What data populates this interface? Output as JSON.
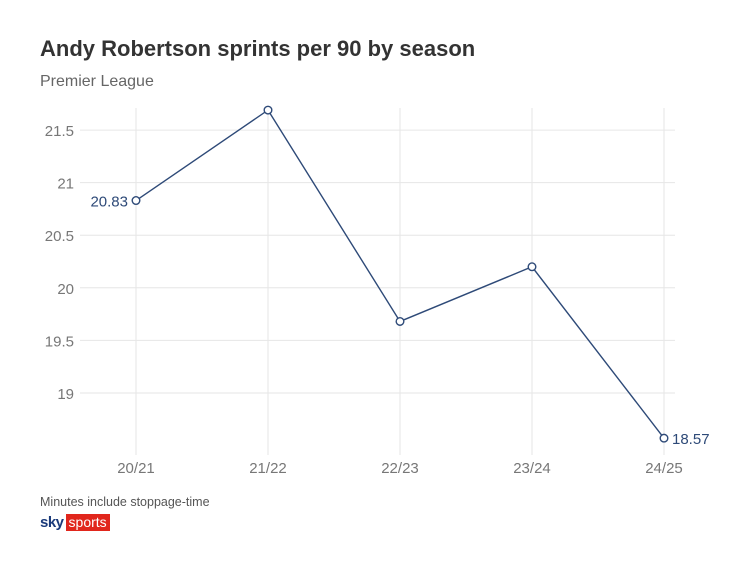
{
  "chart_data": {
    "type": "line",
    "title": "Andy Robertson sprints per 90 by season",
    "subtitle": "Premier League",
    "xlabel": "",
    "ylabel": "",
    "categories": [
      "20/21",
      "21/22",
      "22/23",
      "23/24",
      "24/25"
    ],
    "series": [
      {
        "name": "Sprints per 90",
        "values": [
          20.83,
          21.69,
          19.68,
          20.2,
          18.57
        ],
        "color": "#2e4a78"
      }
    ],
    "data_labels": [
      {
        "index": 0,
        "text": "20.83"
      },
      {
        "index": 4,
        "text": "18.57"
      }
    ],
    "yticks": [
      "19",
      "19.5",
      "20",
      "20.5",
      "21",
      "21.5"
    ],
    "ytick_values": [
      19,
      19.5,
      20,
      20.5,
      21,
      21.5
    ],
    "ylim": [
      18.41,
      21.71
    ],
    "grid": true,
    "legend": "none"
  },
  "footer": {
    "note": "Minutes include stoppage-time",
    "logo_sky": "sky",
    "logo_sports": "sports"
  }
}
